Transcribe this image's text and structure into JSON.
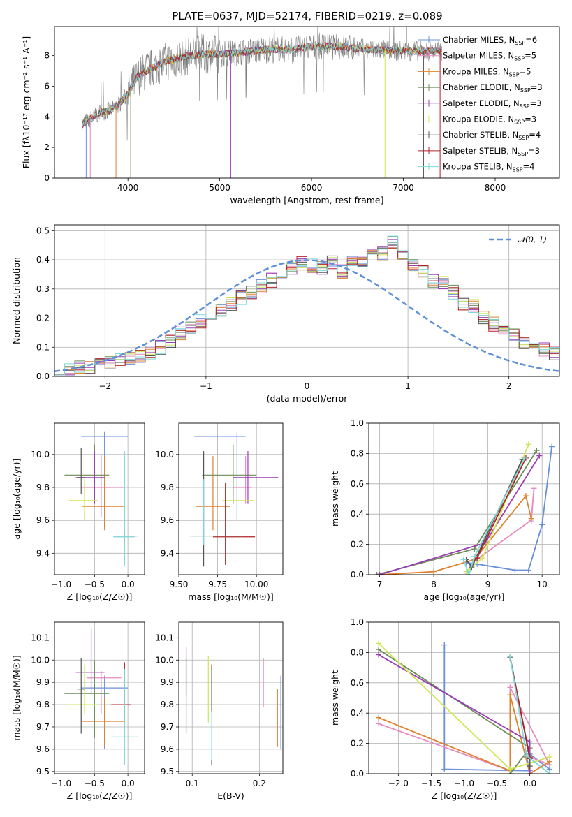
{
  "colors": {
    "Chabrier MILES": "#6a8fdb",
    "Salpeter MILES": "#e58cc0",
    "Kroupa MILES": "#e0812d",
    "Chabrier ELODIE": "#6c8c58",
    "Salpeter ELODIE": "#9c3cb7",
    "Kroupa ELODIE": "#cfe654",
    "Chabrier STELIB": "#555555",
    "Salpeter STELIB": "#b22227",
    "Kroupa STELIB": "#7fd8d8",
    "normal": "#5b8fd8",
    "data": "#808080"
  },
  "chart_data": [
    {
      "id": "spectrum",
      "type": "line",
      "title": "PLATE=0637, MJD=52174, FIBERID=0219, z=0.089",
      "xlabel": "wavelength [Angstrom, rest frame]",
      "ylabel": "Flux [fλ10⁻¹⁷ erg cm⁻² s⁻¹ A⁻¹]",
      "xlim": [
        3200,
        8700
      ],
      "ylim": [
        0,
        9.9
      ],
      "xticks": [
        4000,
        5000,
        6000,
        7000,
        8000
      ],
      "yticks": [
        0,
        2,
        4,
        6,
        8
      ],
      "legend_position": "upper-right",
      "legend": [
        {
          "name": "Chabrier MILES, N_SSP=6",
          "text": "Chabrier MILES, N",
          "sub": "SSP",
          "eq": "=6"
        },
        {
          "name": "Salpeter MILES, N_SSP=5",
          "text": "Salpeter MILES, N",
          "sub": "SSP",
          "eq": "=5"
        },
        {
          "name": "Kroupa MILES, N_SSP=5",
          "text": "Kroupa MILES, N",
          "sub": "SSP",
          "eq": "=5"
        },
        {
          "name": "Chabrier ELODIE, N_SSP=3",
          "text": "Chabrier ELODIE, N",
          "sub": "SSP",
          "eq": "=3"
        },
        {
          "name": "Salpeter ELODIE, N_SSP=3",
          "text": "Salpeter ELODIE, N",
          "sub": "SSP",
          "eq": "=3"
        },
        {
          "name": "Kroupa ELODIE, N_SSP=3",
          "text": "Kroupa ELODIE, N",
          "sub": "SSP",
          "eq": "=3"
        },
        {
          "name": "Chabrier STELIB, N_SSP=4",
          "text": "Chabrier STELIB, N",
          "sub": "SSP",
          "eq": "=4"
        },
        {
          "name": "Salpeter STELIB, N_SSP=3",
          "text": "Salpeter STELIB, N",
          "sub": "SSP",
          "eq": "=3"
        },
        {
          "name": "Kroupa STELIB, N_SSP=4",
          "text": "Kroupa STELIB, N",
          "sub": "SSP",
          "eq": "=4"
        }
      ],
      "continuum": {
        "x": [
          3500,
          3600,
          3700,
          3800,
          3900,
          4000,
          4100,
          4200,
          4400,
          4600,
          4800,
          5000,
          5200,
          5500,
          5800,
          6000,
          6300,
          6600,
          7000,
          7400
        ],
        "y": [
          3.5,
          3.9,
          4.3,
          4.4,
          4.8,
          5.5,
          6.6,
          7.0,
          7.6,
          7.9,
          8.1,
          8.1,
          8.2,
          8.4,
          8.4,
          8.6,
          8.6,
          8.4,
          8.3,
          8.3
        ]
      },
      "dips": [
        {
          "x": 3545,
          "y": 0.0
        },
        {
          "x": 3590,
          "y": 0.0
        },
        {
          "x": 3870,
          "y": 0.0
        },
        {
          "x": 4030,
          "y": 0.0
        },
        {
          "x": 5120,
          "y": 0.0
        },
        {
          "x": 6800,
          "y": 0.0
        },
        {
          "x": 7220,
          "y": 0.0
        },
        {
          "x": 7400,
          "y": 0.0
        }
      ]
    },
    {
      "id": "residuals",
      "type": "histogram",
      "xlabel": "(data-model)/error",
      "ylabel": "Normed distribution",
      "xlim": [
        -2.5,
        2.5
      ],
      "ylim": [
        0,
        0.52
      ],
      "xticks": [
        -2,
        -1,
        0,
        1,
        2
      ],
      "yticks": [
        0.0,
        0.1,
        0.2,
        0.3,
        0.4,
        0.5
      ],
      "legend": [
        {
          "name": "N(0,1)",
          "text": "𝒩(0, 1)"
        }
      ],
      "normal": {
        "mean": 0,
        "sigma": 1
      },
      "bin_width": 0.1,
      "base_values": [
        0.015,
        0.02,
        0.03,
        0.035,
        0.04,
        0.045,
        0.06,
        0.065,
        0.07,
        0.08,
        0.1,
        0.12,
        0.15,
        0.17,
        0.19,
        0.2,
        0.23,
        0.25,
        0.27,
        0.29,
        0.31,
        0.33,
        0.35,
        0.37,
        0.39,
        0.38,
        0.37,
        0.39,
        0.36,
        0.4,
        0.4,
        0.43,
        0.42,
        0.46,
        0.41,
        0.38,
        0.36,
        0.33,
        0.32,
        0.29,
        0.25,
        0.24,
        0.2,
        0.18,
        0.16,
        0.14,
        0.12,
        0.1,
        0.09,
        0.08,
        0.07,
        0.06,
        0.05,
        0.045,
        0.035,
        0.03,
        0.025,
        0.02,
        0.02,
        0.02,
        0.015,
        0.015,
        0.012,
        0.012,
        0.01,
        0.01,
        0.01,
        0.01,
        0.01,
        0.01
      ],
      "bin_start": -2.5
    },
    {
      "id": "age-vs-Z",
      "type": "errorbar",
      "xlabel": "Z [log₁₀(Z/Z☉)]",
      "ylabel": "age [log₁₀(age/yr)]",
      "xlim": [
        -1.1,
        0.25
      ],
      "ylim": [
        9.27,
        10.19
      ],
      "xticks": [
        -1.0,
        -0.5,
        0.0
      ],
      "yticks": [
        9.4,
        9.6,
        9.8,
        10.0
      ],
      "points": [
        {
          "series": "Chabrier MILES",
          "x": -0.35,
          "xlo": -0.7,
          "xhi": 0.0,
          "y": 10.11,
          "ylo": 9.56,
          "yhi": 10.14
        },
        {
          "series": "Salpeter MILES",
          "x": -0.4,
          "xlo": -0.7,
          "xhi": -0.05,
          "y": 9.8,
          "ylo": 9.62,
          "yhi": 10.0
        },
        {
          "series": "Kroupa MILES",
          "x": -0.35,
          "xlo": -0.68,
          "xhi": -0.05,
          "y": 9.685,
          "ylo": 9.54,
          "yhi": 9.99
        },
        {
          "series": "Chabrier ELODIE",
          "x": -0.5,
          "xlo": -0.95,
          "xhi": -0.28,
          "y": 9.875,
          "ylo": 9.7,
          "yhi": 10.06
        },
        {
          "series": "Salpeter ELODIE",
          "x": -0.5,
          "xlo": -0.78,
          "xhi": -0.35,
          "y": 9.86,
          "ylo": 9.7,
          "yhi": 10.02
        },
        {
          "series": "Kroupa ELODIE",
          "x": -0.65,
          "xlo": -0.88,
          "xhi": -0.45,
          "y": 9.72,
          "ylo": 9.6,
          "yhi": 9.85
        },
        {
          "series": "Chabrier STELIB",
          "x": -0.7,
          "xlo": -0.76,
          "xhi": -0.64,
          "y": 9.86,
          "ylo": 9.76,
          "yhi": 10.04
        },
        {
          "series": "Salpeter STELIB",
          "x": -0.05,
          "xlo": -0.2,
          "xhi": 0.15,
          "y": 9.505,
          "ylo": 9.47,
          "yhi": 9.54
        },
        {
          "series": "Kroupa STELIB",
          "x": -0.05,
          "xlo": -0.22,
          "xhi": 0.1,
          "y": 9.5,
          "ylo": 9.32,
          "yhi": 10.02
        }
      ]
    },
    {
      "id": "age-vs-mass",
      "type": "errorbar",
      "xlabel": "mass [log₁₀(M/M☉)]",
      "ylabel": "",
      "xlim": [
        9.5,
        10.17
      ],
      "ylim": [
        9.27,
        10.19
      ],
      "xticks": [
        9.5,
        9.75,
        10.0
      ],
      "yticks": [
        9.4,
        9.6,
        9.8,
        10.0
      ],
      "points": [
        {
          "series": "Chabrier MILES",
          "x": 9.875,
          "xlo": 9.6,
          "xhi": 9.93,
          "y": 10.11,
          "ylo": 9.6,
          "yhi": 10.14
        },
        {
          "series": "Salpeter MILES",
          "x": 9.93,
          "xlo": 9.85,
          "xhi": 9.97,
          "y": 9.8,
          "ylo": 9.7,
          "yhi": 9.99
        },
        {
          "series": "Kroupa MILES",
          "x": 9.72,
          "xlo": 9.61,
          "xhi": 9.83,
          "y": 9.685,
          "ylo": 9.54,
          "yhi": 9.99
        },
        {
          "series": "Chabrier ELODIE",
          "x": 9.85,
          "xlo": 9.65,
          "xhi": 10.0,
          "y": 9.875,
          "ylo": 9.7,
          "yhi": 10.06
        },
        {
          "series": "Salpeter ELODIE",
          "x": 9.945,
          "xlo": 9.85,
          "xhi": 10.14,
          "y": 9.86,
          "ylo": 9.7,
          "yhi": 10.02
        },
        {
          "series": "Kroupa ELODIE",
          "x": 9.8,
          "xlo": 9.78,
          "xhi": 9.98,
          "y": 9.72,
          "ylo": 9.6,
          "yhi": 9.83
        },
        {
          "series": "Chabrier STELIB",
          "x": 9.66,
          "xlo": 9.58,
          "xhi": 9.89,
          "y": 9.505,
          "ylo": 9.32,
          "yhi": 10.02
        },
        {
          "series": "Salpeter STELIB",
          "x": 9.8,
          "xlo": 9.72,
          "xhi": 9.99,
          "y": 9.5,
          "ylo": 9.33,
          "yhi": 9.83
        },
        {
          "series": "Kroupa STELIB",
          "x": 9.66,
          "xlo": 9.56,
          "xhi": 9.92,
          "y": 9.505,
          "ylo": 9.45,
          "yhi": 9.85
        }
      ]
    },
    {
      "id": "massweight-vs-age",
      "type": "line",
      "xlabel": "age [log₁₀(age/yr)]",
      "ylabel": "mass weight",
      "xlim": [
        6.8,
        10.32
      ],
      "ylim": [
        0,
        1.0
      ],
      "xticks": [
        7,
        8,
        9,
        10
      ],
      "yticks": [
        0.0,
        0.2,
        0.4,
        0.6,
        0.8,
        1.0
      ],
      "series": [
        {
          "name": "Chabrier MILES",
          "x": [
            8.6,
            8.8,
            9.5,
            9.75,
            10.0,
            10.18
          ],
          "y": [
            0.08,
            0.07,
            0.03,
            0.03,
            0.33,
            0.845
          ]
        },
        {
          "name": "Salpeter MILES",
          "x": [
            8.6,
            8.75,
            9.8,
            9.85,
            9.8
          ],
          "y": [
            0.01,
            0.09,
            0.36,
            0.57,
            0.35
          ]
        },
        {
          "name": "Kroupa MILES",
          "x": [
            7.0,
            8.0,
            8.75,
            9.7,
            9.8
          ],
          "y": [
            0.0,
            0.02,
            0.1,
            0.52,
            0.37
          ]
        },
        {
          "name": "Chabrier ELODIE",
          "x": [
            6.95,
            8.75,
            9.9
          ],
          "y": [
            0.0,
            0.17,
            0.82
          ]
        },
        {
          "name": "Salpeter ELODIE",
          "x": [
            7.0,
            8.95,
            9.95
          ],
          "y": [
            0.0,
            0.21,
            0.785
          ]
        },
        {
          "name": "Kroupa ELODIE",
          "x": [
            8.6,
            8.9,
            9.75
          ],
          "y": [
            0.02,
            0.11,
            0.86
          ]
        },
        {
          "name": "Chabrier STELIB",
          "x": [
            8.6,
            8.7,
            9.63
          ],
          "y": [
            0.1,
            0.05,
            0.76
          ]
        },
        {
          "name": "Salpeter STELIB",
          "x": [
            8.8,
            9.7
          ],
          "y": [
            0.11,
            0.77
          ]
        },
        {
          "name": "Kroupa STELIB",
          "x": [
            8.55,
            8.65,
            8.75,
            9.68
          ],
          "y": [
            0.1,
            0.0,
            0.12,
            0.77
          ]
        }
      ]
    },
    {
      "id": "mass-vs-Z",
      "type": "errorbar",
      "xlabel": "Z [log₁₀(Z/Z☉)]",
      "ylabel": "mass [log₁₀(M/M☉)]",
      "xlim": [
        -1.1,
        0.25
      ],
      "ylim": [
        9.49,
        10.17
      ],
      "xticks": [
        -1.0,
        -0.5,
        0.0
      ],
      "yticks": [
        9.5,
        9.6,
        9.7,
        9.8,
        9.9,
        10.0,
        10.1
      ],
      "points": [
        {
          "series": "Chabrier MILES",
          "x": -0.35,
          "xlo": -0.7,
          "xhi": 0.0,
          "y": 9.875,
          "ylo": 9.6,
          "yhi": 9.93
        },
        {
          "series": "Salpeter MILES",
          "x": -0.4,
          "xlo": -0.62,
          "xhi": -0.1,
          "y": 9.92,
          "ylo": 9.76,
          "yhi": 9.95
        },
        {
          "series": "Kroupa MILES",
          "x": -0.35,
          "xlo": -0.68,
          "xhi": -0.05,
          "y": 9.725,
          "ylo": 9.61,
          "yhi": 9.83
        },
        {
          "series": "Chabrier ELODIE",
          "x": -0.5,
          "xlo": -0.95,
          "xhi": -0.28,
          "y": 9.85,
          "ylo": 9.65,
          "yhi": 10.0
        },
        {
          "series": "Salpeter ELODIE",
          "x": -0.55,
          "xlo": -0.78,
          "xhi": -0.35,
          "y": 9.945,
          "ylo": 9.85,
          "yhi": 10.14
        },
        {
          "series": "Kroupa ELODIE",
          "x": -0.65,
          "xlo": -0.9,
          "xhi": -0.45,
          "y": 9.8,
          "ylo": 9.76,
          "yhi": 9.98
        },
        {
          "series": "Chabrier STELIB",
          "x": -0.7,
          "xlo": -0.76,
          "xhi": -0.64,
          "y": 9.87,
          "ylo": 9.67,
          "yhi": 10.01
        },
        {
          "series": "Salpeter STELIB",
          "x": -0.05,
          "xlo": -0.25,
          "xhi": 0.05,
          "y": 9.8,
          "ylo": 9.72,
          "yhi": 9.99
        },
        {
          "series": "Kroupa STELIB",
          "x": -0.05,
          "xlo": -0.25,
          "xhi": 0.15,
          "y": 9.655,
          "ylo": 9.53,
          "yhi": 9.96
        }
      ]
    },
    {
      "id": "mass-vs-EBV",
      "type": "errorbar",
      "xlabel": "E(B-V)",
      "ylabel": "",
      "xlim": [
        0.08,
        0.235
      ],
      "ylim": [
        9.49,
        10.17
      ],
      "xticks": [
        0.1,
        0.2
      ],
      "yticks": [
        9.5,
        9.6,
        9.7,
        9.8,
        9.9,
        10.0,
        10.1
      ],
      "points": [
        {
          "series": "Salpeter ELODIE",
          "x": 0.091,
          "ylo": 9.84,
          "yhi": 10.06
        },
        {
          "series": "Chabrier ELODIE",
          "x": 0.091,
          "ylo": 9.67,
          "yhi": 10.01
        },
        {
          "series": "Kroupa ELODIE",
          "x": 0.124,
          "ylo": 9.72,
          "yhi": 10.02
        },
        {
          "series": "Salpeter STELIB",
          "x": 0.129,
          "ylo": 9.94,
          "yhi": 9.98
        },
        {
          "series": "Chabrier STELIB",
          "x": 0.129,
          "ylo": 9.53,
          "yhi": 9.96
        },
        {
          "series": "Kroupa STELIB",
          "x": 0.129,
          "ylo": 9.55,
          "yhi": 9.77
        },
        {
          "series": "Salpeter MILES",
          "x": 0.206,
          "ylo": 9.79,
          "yhi": 10.01
        },
        {
          "series": "Kroupa MILES",
          "x": 0.227,
          "ylo": 9.61,
          "yhi": 9.87
        },
        {
          "series": "Chabrier MILES",
          "x": 0.232,
          "ylo": 9.6,
          "yhi": 9.93
        }
      ]
    },
    {
      "id": "massweight-vs-Z",
      "type": "line",
      "xlabel": "Z [log₁₀(Z/Z☉)]",
      "ylabel": "mass weight",
      "xlim": [
        -2.45,
        0.45
      ],
      "ylim": [
        0,
        1.0
      ],
      "xticks": [
        -2.0,
        -1.5,
        -1.0,
        -0.5,
        0.0
      ],
      "yticks": [
        0.0,
        0.2,
        0.4,
        0.6,
        0.8,
        1.0
      ],
      "series": [
        {
          "name": "Chabrier MILES",
          "x": [
            -1.3,
            -1.3,
            0.0,
            -0.05,
            0.0,
            0.3
          ],
          "y": [
            0.85,
            0.03,
            0.02,
            0.11,
            0.13,
            0.03
          ]
        },
        {
          "name": "Salpeter MILES",
          "x": [
            -2.3,
            -0.3,
            -0.3,
            0.3,
            0.0
          ],
          "y": [
            0.33,
            0.02,
            0.57,
            0.06,
            0.11
          ]
        },
        {
          "name": "Kroupa MILES",
          "x": [
            -2.3,
            -0.3,
            -0.3,
            0.0,
            0.3
          ],
          "y": [
            0.37,
            0.02,
            0.52,
            0.0,
            0.08
          ]
        },
        {
          "name": "Chabrier ELODIE",
          "x": [
            -2.3,
            0.0,
            -0.3
          ],
          "y": [
            0.82,
            0.17,
            0.0
          ]
        },
        {
          "name": "Salpeter ELODIE",
          "x": [
            -2.3,
            0.0,
            0.0
          ],
          "y": [
            0.785,
            0.21,
            0.0
          ]
        },
        {
          "name": "Kroupa ELODIE",
          "x": [
            -2.3,
            -0.3,
            0.3
          ],
          "y": [
            0.86,
            0.03,
            0.11
          ]
        },
        {
          "name": "Chabrier STELIB",
          "x": [
            -0.3,
            0.0,
            0.0
          ],
          "y": [
            0.77,
            0.1,
            0.05
          ]
        },
        {
          "name": "Salpeter STELIB",
          "x": [
            -0.3,
            0.0
          ],
          "y": [
            0.765,
            0.11
          ]
        },
        {
          "name": "Kroupa STELIB",
          "x": [
            -0.3,
            -0.05,
            0.3
          ],
          "y": [
            0.77,
            0.12,
            0.0
          ]
        }
      ]
    }
  ]
}
